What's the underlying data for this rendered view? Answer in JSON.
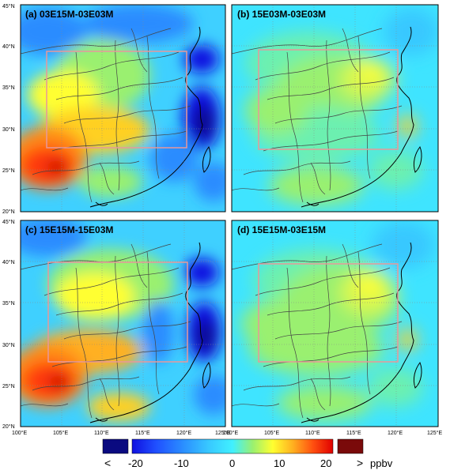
{
  "panels": [
    {
      "title": "(a) 03E15M-03E03M"
    },
    {
      "title": "(b) 15E03M-03E03M"
    },
    {
      "title": "(c) 15E15M-15E03M"
    },
    {
      "title": "(d) 15E15M-03E15M"
    }
  ],
  "axes": {
    "lon_labels": [
      "100°E",
      "105°E",
      "110°E",
      "115°E",
      "120°E",
      "125°E"
    ],
    "lat_labels": [
      "20°N",
      "25°N",
      "30°N",
      "35°N",
      "40°N",
      "45°N"
    ]
  },
  "colorbar": {
    "less_symbol": "<",
    "greater_symbol": ">",
    "tick_labels": [
      "-20",
      "-10",
      "0",
      "10",
      "20"
    ],
    "unit": "ppbv",
    "colors": [
      "#0a0a80",
      "#1010e0",
      "#2a6cff",
      "#38b8ff",
      "#40e8ff",
      "#9af070",
      "#ffff30",
      "#ffb020",
      "#ff5010",
      "#e00000",
      "#7a0a0a"
    ]
  },
  "colors": {
    "box_outline": "#e8989a",
    "coastline": "#000000",
    "borders": "#444444"
  }
}
